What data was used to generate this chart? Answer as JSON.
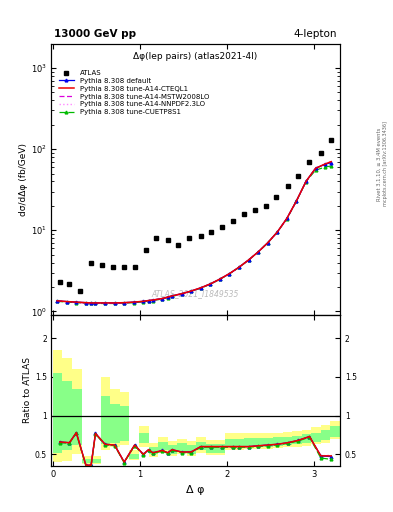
{
  "title_top": "13000 GeV pp",
  "title_right": "4-lepton",
  "plot_title": "Δφ(lep pairs) (atlas2021-4l)",
  "watermark": "ATLAS_2021_I1849535",
  "rivet_label": "Rivet 3.1.10, ≥ 3.4M events",
  "arxiv_label": "mcplots.cern.ch [arXiv:1306.3436]",
  "xlabel": "Δ φ",
  "ylabel_main": "dσ/dΔφ (fb/GeV)",
  "ylabel_ratio": "Ratio to ATLAS",
  "ylim_main": [
    0.9,
    2000
  ],
  "ylim_ratio": [
    0.35,
    2.3
  ],
  "xlim": [
    -0.02,
    3.3
  ],
  "atlas_x": [
    0.08,
    0.19,
    0.31,
    0.44,
    0.56,
    0.69,
    0.82,
    0.94,
    1.07,
    1.19,
    1.32,
    1.44,
    1.57,
    1.7,
    1.82,
    1.95,
    2.07,
    2.2,
    2.32,
    2.45,
    2.57,
    2.7,
    2.82,
    2.95,
    3.08,
    3.2
  ],
  "atlas_y": [
    2.3,
    2.2,
    1.8,
    3.9,
    3.7,
    3.5,
    3.5,
    3.5,
    5.7,
    8.0,
    7.5,
    6.5,
    8.0,
    8.5,
    9.5,
    11.0,
    13.0,
    16.0,
    18.0,
    20.0,
    26.0,
    35.0,
    47.0,
    70.0,
    90.0,
    130.0
  ],
  "mc_x": [
    0.05,
    0.16,
    0.27,
    0.38,
    0.44,
    0.49,
    0.6,
    0.71,
    0.82,
    0.93,
    1.04,
    1.1,
    1.15,
    1.26,
    1.32,
    1.37,
    1.48,
    1.59,
    1.7,
    1.81,
    1.92,
    2.03,
    2.14,
    2.25,
    2.36,
    2.47,
    2.58,
    2.69,
    2.8,
    2.91,
    3.02,
    3.13,
    3.2
  ],
  "default_y": [
    1.35,
    1.32,
    1.3,
    1.28,
    1.27,
    1.27,
    1.27,
    1.27,
    1.28,
    1.3,
    1.33,
    1.36,
    1.38,
    1.44,
    1.5,
    1.55,
    1.65,
    1.78,
    1.95,
    2.18,
    2.5,
    2.92,
    3.5,
    4.3,
    5.4,
    7.0,
    9.5,
    14.0,
    23.0,
    40.0,
    58.0,
    65.0,
    68.0
  ],
  "cteql1_y": [
    1.35,
    1.32,
    1.3,
    1.28,
    1.27,
    1.27,
    1.27,
    1.27,
    1.28,
    1.3,
    1.33,
    1.36,
    1.38,
    1.44,
    1.5,
    1.55,
    1.65,
    1.78,
    1.95,
    2.18,
    2.5,
    2.92,
    3.5,
    4.3,
    5.4,
    7.0,
    9.5,
    14.0,
    23.0,
    40.0,
    58.0,
    65.5,
    70.0
  ],
  "mstw_y": [
    1.34,
    1.31,
    1.29,
    1.27,
    1.26,
    1.26,
    1.26,
    1.26,
    1.27,
    1.29,
    1.32,
    1.35,
    1.37,
    1.43,
    1.49,
    1.54,
    1.64,
    1.77,
    1.94,
    2.17,
    2.49,
    2.91,
    3.49,
    4.29,
    5.39,
    6.99,
    9.49,
    13.9,
    22.9,
    39.9,
    57.9,
    65.4,
    69.9
  ],
  "nnpdf_y": [
    1.35,
    1.32,
    1.3,
    1.28,
    1.27,
    1.27,
    1.27,
    1.27,
    1.28,
    1.3,
    1.33,
    1.36,
    1.38,
    1.44,
    1.5,
    1.55,
    1.65,
    1.78,
    1.95,
    2.18,
    2.5,
    2.92,
    3.5,
    4.3,
    5.4,
    7.0,
    9.5,
    14.0,
    23.0,
    40.0,
    58.0,
    65.5,
    70.0
  ],
  "cuetp_y": [
    1.33,
    1.3,
    1.28,
    1.26,
    1.25,
    1.25,
    1.25,
    1.25,
    1.26,
    1.28,
    1.31,
    1.34,
    1.36,
    1.42,
    1.48,
    1.53,
    1.63,
    1.76,
    1.93,
    2.16,
    2.48,
    2.9,
    3.48,
    4.28,
    5.38,
    6.98,
    9.48,
    13.8,
    22.8,
    39.8,
    55.0,
    60.0,
    62.0
  ],
  "ratio_atlas_x": [
    0.08,
    0.19,
    0.27,
    0.38,
    0.44,
    0.49,
    0.6,
    0.71,
    0.82,
    0.94,
    1.04,
    1.1,
    1.15,
    1.26,
    1.32,
    1.37,
    1.48,
    1.59,
    1.7,
    1.82,
    1.95,
    2.07,
    2.14,
    2.25,
    2.36,
    2.47,
    2.58,
    2.7,
    2.82,
    2.95,
    3.08,
    3.2
  ],
  "ratio_default": [
    0.66,
    0.65,
    0.78,
    0.36,
    0.36,
    0.77,
    0.63,
    0.62,
    0.4,
    0.62,
    0.5,
    0.56,
    0.52,
    0.55,
    0.52,
    0.56,
    0.53,
    0.53,
    0.6,
    0.6,
    0.6,
    0.6,
    0.6,
    0.6,
    0.61,
    0.62,
    0.63,
    0.65,
    0.68,
    0.73,
    0.48,
    0.47
  ],
  "ratio_cteql1": [
    0.66,
    0.65,
    0.78,
    0.36,
    0.36,
    0.77,
    0.63,
    0.62,
    0.4,
    0.62,
    0.5,
    0.56,
    0.52,
    0.55,
    0.52,
    0.56,
    0.53,
    0.53,
    0.6,
    0.6,
    0.6,
    0.6,
    0.6,
    0.6,
    0.61,
    0.62,
    0.63,
    0.65,
    0.68,
    0.73,
    0.48,
    0.48
  ],
  "ratio_mstw": [
    0.655,
    0.645,
    0.775,
    0.358,
    0.358,
    0.768,
    0.628,
    0.618,
    0.398,
    0.618,
    0.498,
    0.558,
    0.518,
    0.548,
    0.518,
    0.558,
    0.528,
    0.528,
    0.598,
    0.598,
    0.598,
    0.598,
    0.598,
    0.598,
    0.608,
    0.618,
    0.628,
    0.648,
    0.678,
    0.728,
    0.478,
    0.478
  ],
  "ratio_nnpdf": [
    0.66,
    0.65,
    0.78,
    0.36,
    0.36,
    0.77,
    0.63,
    0.62,
    0.4,
    0.62,
    0.5,
    0.56,
    0.52,
    0.55,
    0.52,
    0.56,
    0.53,
    0.53,
    0.6,
    0.6,
    0.6,
    0.6,
    0.6,
    0.6,
    0.61,
    0.62,
    0.63,
    0.65,
    0.68,
    0.73,
    0.48,
    0.49
  ],
  "ratio_cuetp": [
    0.652,
    0.642,
    0.772,
    0.352,
    0.352,
    0.762,
    0.622,
    0.612,
    0.392,
    0.612,
    0.492,
    0.552,
    0.512,
    0.542,
    0.512,
    0.552,
    0.522,
    0.522,
    0.592,
    0.592,
    0.592,
    0.592,
    0.592,
    0.592,
    0.602,
    0.612,
    0.622,
    0.642,
    0.672,
    0.722,
    0.452,
    0.435
  ],
  "band_x": [
    0.0,
    0.11,
    0.22,
    0.33,
    0.44,
    0.55,
    0.66,
    0.77,
    0.88,
    0.99,
    1.1,
    1.21,
    1.32,
    1.43,
    1.54,
    1.65,
    1.76,
    1.87,
    1.98,
    2.09,
    2.2,
    2.31,
    2.42,
    2.53,
    2.64,
    2.75,
    2.86,
    2.97,
    3.08,
    3.19,
    3.3
  ],
  "band_yellow_low": [
    0.4,
    0.42,
    0.5,
    0.38,
    0.38,
    0.55,
    0.6,
    0.62,
    0.43,
    0.6,
    0.47,
    0.52,
    0.48,
    0.5,
    0.48,
    0.52,
    0.49,
    0.49,
    0.56,
    0.56,
    0.57,
    0.57,
    0.57,
    0.58,
    0.59,
    0.6,
    0.61,
    0.63,
    0.65,
    0.7,
    0.88
  ],
  "band_yellow_high": [
    1.85,
    1.75,
    1.6,
    0.48,
    0.48,
    1.5,
    1.35,
    1.3,
    0.55,
    0.87,
    0.65,
    0.72,
    0.67,
    0.7,
    0.67,
    0.72,
    0.69,
    0.69,
    0.77,
    0.77,
    0.77,
    0.77,
    0.78,
    0.78,
    0.79,
    0.8,
    0.82,
    0.85,
    0.88,
    0.93,
    1.05
  ],
  "band_green_low": [
    0.52,
    0.55,
    0.62,
    0.39,
    0.39,
    0.63,
    0.65,
    0.67,
    0.44,
    0.65,
    0.5,
    0.55,
    0.51,
    0.53,
    0.51,
    0.55,
    0.52,
    0.52,
    0.59,
    0.59,
    0.6,
    0.6,
    0.6,
    0.61,
    0.62,
    0.63,
    0.64,
    0.66,
    0.68,
    0.72,
    0.92
  ],
  "band_green_high": [
    1.55,
    1.45,
    1.35,
    0.44,
    0.44,
    1.25,
    1.15,
    1.12,
    0.5,
    0.78,
    0.6,
    0.66,
    0.62,
    0.65,
    0.62,
    0.66,
    0.63,
    0.63,
    0.7,
    0.7,
    0.71,
    0.71,
    0.71,
    0.72,
    0.73,
    0.74,
    0.76,
    0.78,
    0.82,
    0.87,
    1.0
  ],
  "color_default": "#0000ee",
  "color_cteql1": "#ee0000",
  "color_mstw": "#dd00dd",
  "color_nnpdf": "#ff88ff",
  "color_cuetp": "#00bb00",
  "color_atlas": "#000000",
  "color_yellow_band": "#ffff88",
  "color_green_band": "#88ff88"
}
